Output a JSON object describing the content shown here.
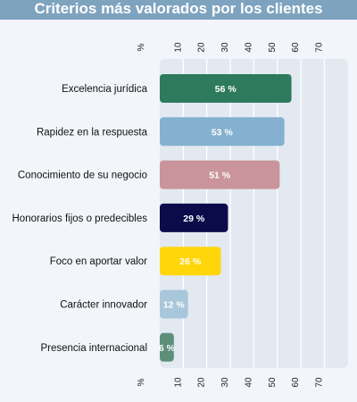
{
  "title": "Criterios más valorados por los clientes",
  "chart_data": {
    "type": "bar",
    "orientation": "horizontal",
    "title": "Criterios más valorados por los clientes",
    "categories": [
      "Excelencia jurídica",
      "Rapidez en la respuesta",
      "Conocimiento de su negocio",
      "Honorarios fijos o predecibles",
      "Foco en aportar valor",
      "Carácter innovador",
      "Presencia internacional"
    ],
    "values": [
      56,
      53,
      51,
      29,
      26,
      12,
      6
    ],
    "value_labels": [
      "56 %",
      "53 %",
      "51 %",
      "29 %",
      "26 %",
      "12 %",
      "6 %"
    ],
    "bar_colors": [
      "#2e7a5e",
      "#84b1cf",
      "#c9949b",
      "#0b0b4a",
      "#ffd60a",
      "#a9c7db",
      "#5e8f7b"
    ],
    "label_colors": [
      "#ffffff",
      "#ffffff",
      "#ffffff",
      "#ffffff",
      "#ffffff",
      "#ffffff",
      "#ffffff"
    ],
    "axis_unit": "%",
    "xticks": [
      10,
      20,
      30,
      40,
      50,
      60,
      70
    ],
    "xlim": [
      0,
      80
    ],
    "grid": true,
    "axis_position": "top and bottom"
  }
}
